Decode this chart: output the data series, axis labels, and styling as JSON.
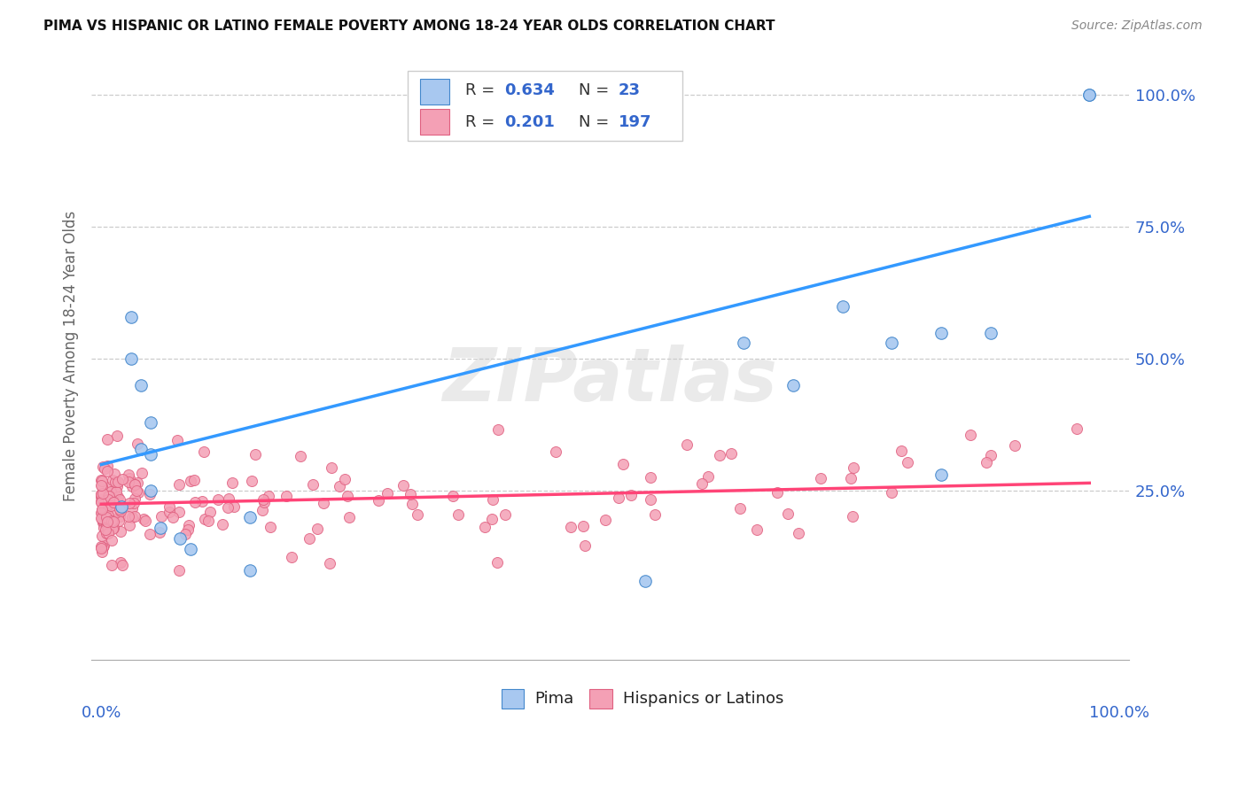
{
  "title": "PIMA VS HISPANIC OR LATINO FEMALE POVERTY AMONG 18-24 YEAR OLDS CORRELATION CHART",
  "source": "Source: ZipAtlas.com",
  "ylabel": "Female Poverty Among 18-24 Year Olds",
  "right_ytick_labels": [
    "25.0%",
    "50.0%",
    "75.0%",
    "100.0%"
  ],
  "right_ytick_values": [
    0.25,
    0.5,
    0.75,
    1.0
  ],
  "legend_R_blue": "0.634",
  "legend_N_blue": "23",
  "legend_R_pink": "0.201",
  "legend_N_pink": "197",
  "blue_fill": "#a8c8f0",
  "pink_fill": "#f4a0b5",
  "blue_edge": "#4488cc",
  "pink_edge": "#e06080",
  "blue_line": "#3399ff",
  "pink_line": "#ff4477",
  "accent_blue": "#3366cc",
  "watermark": "ZIPatlas",
  "background_color": "#ffffff"
}
